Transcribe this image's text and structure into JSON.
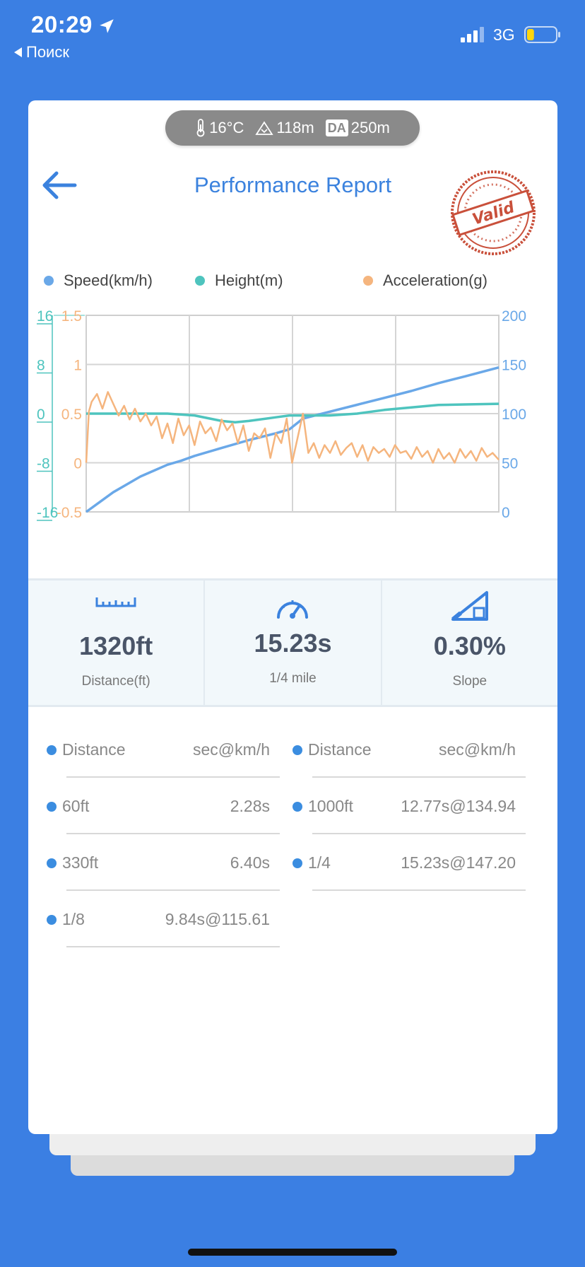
{
  "status_bar": {
    "time": "20:29",
    "back_app": "Поиск",
    "network": "3G",
    "icons": [
      "location-arrow-icon",
      "signal-icon",
      "battery-icon"
    ],
    "battery_level": 0.25
  },
  "weather": {
    "temperature": "16°C",
    "altitude": "118m",
    "da_label": "DA",
    "density_altitude": "250m",
    "icons": [
      "thermometer-icon",
      "mountain-icon"
    ]
  },
  "header": {
    "title": "Performance Report",
    "stamp_text": "Valid",
    "icons": [
      "back-arrow-icon",
      "valid-stamp-icon"
    ]
  },
  "legend": [
    {
      "label": "Speed(km/h)",
      "color": "#6AA8E8"
    },
    {
      "label": "Height(m)",
      "color": "#4EC4BE"
    },
    {
      "label": "Acceleration(g)",
      "color": "#F5B57E"
    }
  ],
  "chart_data": {
    "type": "line",
    "x_range": [
      0,
      15.23
    ],
    "axes": {
      "height_left": {
        "ticks": [
          "16",
          "8",
          "0",
          "-8",
          "-16"
        ],
        "range": [
          -16,
          16
        ],
        "color": "#4EC4BE"
      },
      "acceleration_left": {
        "ticks": [
          "1.5",
          "1",
          "0.5",
          "0",
          "-0.5"
        ],
        "range": [
          -0.5,
          1.5
        ],
        "color": "#F5B57E"
      },
      "speed_right": {
        "ticks": [
          "200",
          "150",
          "100",
          "50",
          "0"
        ],
        "range": [
          0,
          200
        ],
        "color": "#6AA8E8"
      }
    },
    "grid": true,
    "series": [
      {
        "name": "Speed(km/h)",
        "axis": "speed_right",
        "color": "#6AA8E8",
        "x": [
          0,
          0.5,
          1,
          1.5,
          2,
          2.5,
          3,
          3.5,
          4,
          5,
          6,
          7,
          7.5,
          8,
          9,
          10,
          11,
          12,
          13,
          14,
          15.23
        ],
        "y": [
          0,
          10,
          20,
          28,
          36,
          42,
          48,
          52,
          57,
          65,
          73,
          80,
          84,
          95,
          102,
          109,
          116,
          123,
          131,
          138,
          147
        ]
      },
      {
        "name": "Height(m)",
        "axis": "height_left",
        "color": "#4EC4BE",
        "x": [
          0,
          1,
          2,
          3,
          4,
          5,
          5.5,
          6,
          7,
          7.5,
          8,
          9,
          10,
          11,
          12,
          13,
          14,
          15.23
        ],
        "y": [
          0,
          0,
          0,
          0,
          -0.3,
          -1.2,
          -1.4,
          -1.2,
          -0.6,
          -0.3,
          -0.3,
          -0.3,
          0,
          0.6,
          1.0,
          1.4,
          1.5,
          1.6
        ]
      },
      {
        "name": "Acceleration(g)",
        "axis": "acceleration_left",
        "color": "#F5B57E",
        "x": [
          0,
          0.1,
          0.2,
          0.4,
          0.6,
          0.8,
          1.0,
          1.2,
          1.4,
          1.6,
          1.8,
          2.0,
          2.2,
          2.4,
          2.6,
          2.8,
          3.0,
          3.2,
          3.4,
          3.6,
          3.8,
          4.0,
          4.2,
          4.4,
          4.6,
          4.8,
          5.0,
          5.2,
          5.4,
          5.6,
          5.8,
          6.0,
          6.2,
          6.4,
          6.6,
          6.8,
          7.0,
          7.2,
          7.4,
          7.6,
          7.8,
          8.0,
          8.2,
          8.4,
          8.6,
          8.8,
          9.0,
          9.2,
          9.4,
          9.6,
          9.8,
          10.0,
          10.2,
          10.4,
          10.6,
          10.8,
          11.0,
          11.2,
          11.4,
          11.6,
          11.8,
          12.0,
          12.2,
          12.4,
          12.6,
          12.8,
          13.0,
          13.2,
          13.4,
          13.6,
          13.8,
          14.0,
          14.2,
          14.4,
          14.6,
          14.8,
          15.0,
          15.23
        ],
        "y": [
          0,
          0.52,
          0.62,
          0.7,
          0.55,
          0.72,
          0.6,
          0.48,
          0.58,
          0.44,
          0.55,
          0.42,
          0.5,
          0.38,
          0.47,
          0.25,
          0.4,
          0.2,
          0.45,
          0.28,
          0.38,
          0.18,
          0.42,
          0.3,
          0.36,
          0.22,
          0.44,
          0.33,
          0.4,
          0.2,
          0.38,
          0.12,
          0.3,
          0.25,
          0.35,
          0.05,
          0.3,
          0.2,
          0.45,
          0.0,
          0.25,
          0.5,
          0.1,
          0.2,
          0.05,
          0.18,
          0.1,
          0.22,
          0.08,
          0.15,
          0.2,
          0.06,
          0.18,
          0.02,
          0.16,
          0.1,
          0.14,
          0.06,
          0.18,
          0.1,
          0.12,
          0.04,
          0.16,
          0.06,
          0.12,
          0.0,
          0.14,
          0.04,
          0.1,
          0.0,
          0.14,
          0.05,
          0.12,
          0.02,
          0.15,
          0.06,
          0.1,
          0.03
        ]
      }
    ]
  },
  "stats": [
    {
      "value": "1320ft",
      "label": "Distance(ft)",
      "icon": "ruler-icon"
    },
    {
      "value": "15.23s",
      "label": "1/4 mile",
      "icon": "speedometer-icon"
    },
    {
      "value": "0.30%",
      "label": "Slope",
      "icon": "slope-icon"
    }
  ],
  "splits": {
    "headers": [
      {
        "name": "Distance",
        "value": "sec@km/h"
      },
      {
        "name": "Distance",
        "value": "sec@km/h"
      }
    ],
    "left": [
      {
        "name": "60ft",
        "value": "2.28s"
      },
      {
        "name": "330ft",
        "value": "6.40s"
      },
      {
        "name": "1/8",
        "value": "9.84s@115.61"
      }
    ],
    "right": [
      {
        "name": "1000ft",
        "value": "12.77s@134.94"
      },
      {
        "name": "1/4",
        "value": "15.23s@147.20"
      }
    ]
  }
}
